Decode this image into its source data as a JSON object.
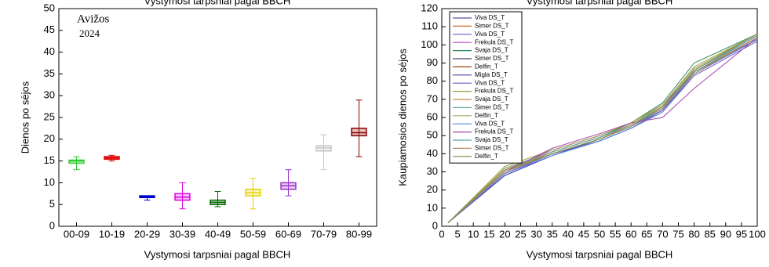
{
  "chart_data": [
    {
      "type": "box",
      "title": "Vystymosi tarpsniai pagal BBCH",
      "xlabel": "Vystymosi tarpsniai pagal BBCH",
      "ylabel": "Dienos po sėjos",
      "annotations": [
        "Avižos",
        "2024"
      ],
      "categories": [
        "00-09",
        "10-19",
        "20-29",
        "30-39",
        "40-49",
        "50-59",
        "60-69",
        "70-79",
        "80-99"
      ],
      "min": [
        13,
        15,
        6,
        4,
        4.5,
        4,
        7,
        13,
        16
      ],
      "q1": [
        14.5,
        15.4,
        6.6,
        6,
        5,
        7,
        8.5,
        17.3,
        20.8
      ],
      "median": [
        15,
        15.7,
        6.8,
        6.7,
        5.5,
        7.7,
        9.3,
        18,
        21.5
      ],
      "q3": [
        15.2,
        16,
        7,
        7.5,
        6,
        8.5,
        10,
        18.5,
        22.5
      ],
      "max": [
        16,
        16.3,
        7,
        10,
        8,
        11,
        13,
        21,
        29
      ],
      "colors": [
        "#33cc33",
        "#dd0000",
        "#0000cc",
        "#dd00dd",
        "#006600",
        "#e6d200",
        "#9933cc",
        "#c8c8c8",
        "#8b0000"
      ],
      "ylim": [
        0,
        50
      ],
      "yticks": [
        0,
        5,
        10,
        15,
        20,
        25,
        30,
        35,
        40,
        45,
        50
      ]
    },
    {
      "type": "line",
      "title": "Vystymosi tarpsniai pagal BBCH",
      "xlabel": "Vystymosi tarpsniai pagal BBCH",
      "ylabel": "Kaupiamosios dienos po sėjos",
      "x": [
        2,
        20,
        35,
        50,
        60,
        70,
        80,
        100
      ],
      "xlim": [
        0,
        100
      ],
      "xticks": [
        0,
        5,
        10,
        15,
        20,
        25,
        30,
        35,
        40,
        45,
        50,
        55,
        60,
        65,
        70,
        75,
        80,
        85,
        90,
        95,
        100
      ],
      "ylim": [
        0,
        120
      ],
      "yticks": [
        0,
        10,
        20,
        30,
        40,
        50,
        60,
        70,
        80,
        90,
        100,
        110,
        120
      ],
      "legend": "upper left",
      "series": [
        {
          "name": "Viva DS_T",
          "color": "#5555aa",
          "values": [
            2,
            29,
            40,
            48,
            55,
            64,
            84,
            103
          ]
        },
        {
          "name": "Simer DS_T",
          "color": "#d2691e",
          "values": [
            2,
            30,
            41,
            49,
            56,
            66,
            86,
            105
          ]
        },
        {
          "name": "Viva DS_T",
          "color": "#6a5acd",
          "values": [
            2,
            28,
            39,
            47,
            54,
            63,
            83,
            102
          ]
        },
        {
          "name": "Frekula DS_T",
          "color": "#cc44cc",
          "values": [
            2,
            31,
            42,
            50,
            57,
            67,
            85,
            104
          ]
        },
        {
          "name": "Svaja DS_T",
          "color": "#2e8b57",
          "values": [
            2,
            32,
            41,
            49,
            57,
            68,
            90,
            106
          ]
        },
        {
          "name": "Simer DS_T",
          "color": "#444477",
          "values": [
            2,
            29,
            40,
            48,
            55,
            65,
            86,
            105
          ]
        },
        {
          "name": "Delfin_T",
          "color": "#8b4513",
          "values": [
            2,
            30,
            40,
            48,
            56,
            66,
            84,
            104
          ]
        },
        {
          "name": "Migla DS_T",
          "color": "#4444aa",
          "values": [
            2,
            28,
            39,
            48,
            55,
            65,
            85,
            103
          ]
        },
        {
          "name": "Viva DS_T",
          "color": "#5f5fbf",
          "values": [
            2,
            29,
            40,
            47,
            54,
            64,
            86,
            105
          ]
        },
        {
          "name": "Frekula DS_T",
          "color": "#999933",
          "values": [
            2,
            33,
            42,
            50,
            57,
            67,
            87,
            106
          ]
        },
        {
          "name": "Svaja DS_T",
          "color": "#cc8844",
          "values": [
            2,
            31,
            41,
            49,
            56,
            66,
            85,
            104
          ]
        },
        {
          "name": "Simer DS_T",
          "color": "#66aaaa",
          "values": [
            2,
            30,
            40,
            48,
            55,
            65,
            86,
            105
          ]
        },
        {
          "name": "Delfin_T",
          "color": "#aaaa66",
          "values": [
            2,
            32,
            41,
            49,
            56,
            67,
            88,
            106
          ]
        },
        {
          "name": "Viva DS_T",
          "color": "#5588dd",
          "values": [
            2,
            29,
            39,
            47,
            54,
            63,
            84,
            103
          ]
        },
        {
          "name": "Frekula DS_T",
          "color": "#aa44aa",
          "values": [
            2,
            30,
            43,
            51,
            57,
            60,
            76,
            104
          ]
        },
        {
          "name": "Svaja DS_T",
          "color": "#55aaaa",
          "values": [
            2,
            31,
            41,
            49,
            56,
            66,
            85,
            105
          ]
        },
        {
          "name": "Simer DS_T",
          "color": "#bb8866",
          "values": [
            2,
            30,
            40,
            48,
            56,
            65,
            84,
            104
          ]
        },
        {
          "name": "Delfin_T",
          "color": "#888844",
          "values": [
            2,
            31,
            40,
            48,
            55,
            66,
            86,
            106
          ]
        }
      ]
    }
  ]
}
